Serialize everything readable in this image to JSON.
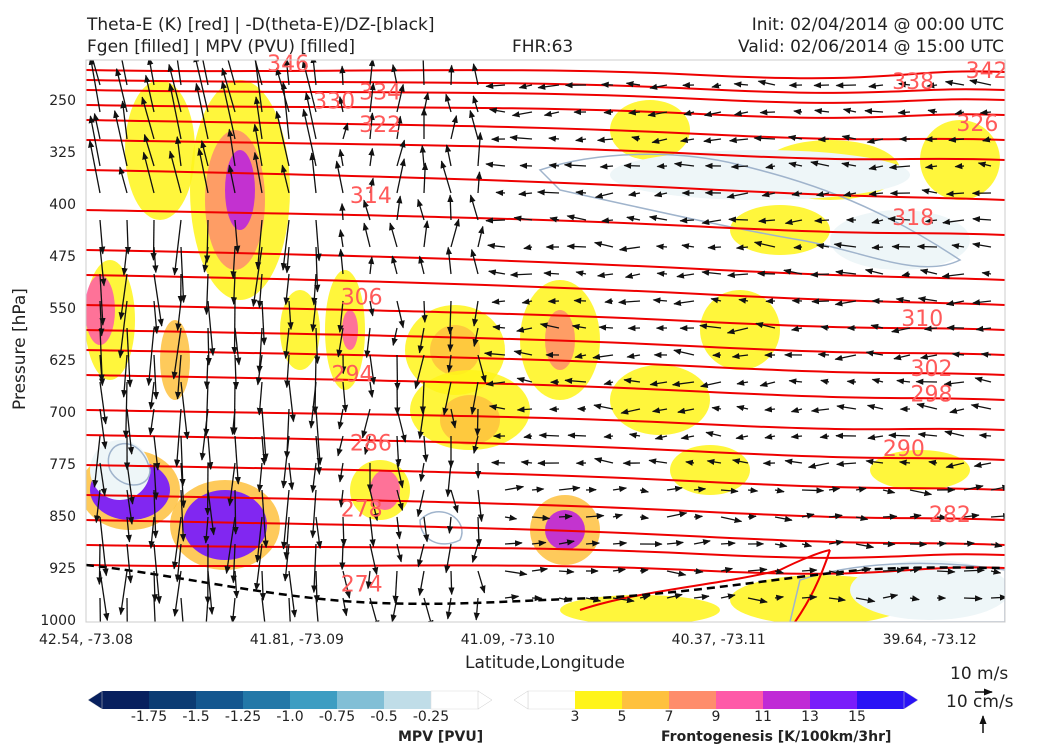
{
  "header": {
    "title_left_1": "Theta-E (K) [red] | -D(theta-E)/DZ-[black]",
    "title_left_2": "Fgen [filled] | MPV (PVU) [filled]",
    "fhr": "FHR:63",
    "init": "Init: 02/04/2014 @ 00:00 UTC",
    "valid": "Valid: 02/06/2014 @ 15:00 UTC"
  },
  "colors": {
    "theta_e": "#ee0000",
    "vectors": "#111111",
    "mpv_contour": "#a0b4cc",
    "dashed": "#000000"
  },
  "chart_data": {
    "type": "cross-section",
    "xlabel": "Latitude,Longitude",
    "ylabel": "Pressure [hPa]",
    "y_ticks": [
      250,
      325,
      400,
      475,
      550,
      625,
      700,
      775,
      850,
      925,
      1000
    ],
    "ylim": [
      1000,
      190
    ],
    "x_ticks": [
      "42.54, -73.08",
      "41.81, -73.09",
      "41.09, -73.10",
      "40.37, -73.11",
      "39.64, -73.12"
    ],
    "theta_e_labels": [
      {
        "label": "346",
        "x": 0.22,
        "p": 196
      },
      {
        "label": "334",
        "x": 0.32,
        "p": 237
      },
      {
        "label": "330",
        "x": 0.27,
        "p": 250
      },
      {
        "label": "338",
        "x": 0.9,
        "p": 222
      },
      {
        "label": "342",
        "x": 0.98,
        "p": 206
      },
      {
        "label": "322",
        "x": 0.32,
        "p": 284
      },
      {
        "label": "326",
        "x": 0.97,
        "p": 282
      },
      {
        "label": "314",
        "x": 0.31,
        "p": 386
      },
      {
        "label": "318",
        "x": 0.9,
        "p": 418
      },
      {
        "label": "306",
        "x": 0.3,
        "p": 532
      },
      {
        "label": "310",
        "x": 0.91,
        "p": 563
      },
      {
        "label": "294",
        "x": 0.29,
        "p": 643
      },
      {
        "label": "302",
        "x": 0.92,
        "p": 635
      },
      {
        "label": "298",
        "x": 0.92,
        "p": 672
      },
      {
        "label": "286",
        "x": 0.31,
        "p": 743
      },
      {
        "label": "290",
        "x": 0.89,
        "p": 751
      },
      {
        "label": "278",
        "x": 0.3,
        "p": 838
      },
      {
        "label": "282",
        "x": 0.94,
        "p": 846
      },
      {
        "label": "274",
        "x": 0.3,
        "p": 946
      }
    ],
    "vector_reference": {
      "top": "10 m/s",
      "bottom": "10 cm/s"
    }
  },
  "colorbars": {
    "mpv": {
      "title": "MPV [PVU]",
      "ticks": [
        "-1.75",
        "-1.5",
        "-1.25",
        "-1.0",
        "-0.75",
        "-0.5",
        "-0.25"
      ],
      "colors": [
        "#08205e",
        "#0b3b73",
        "#14578f",
        "#2378a8",
        "#3d9dc2",
        "#82bfd6",
        "#c0dde8",
        "#ffffff"
      ]
    },
    "fgen": {
      "title": "Frontogenesis [K/100km/3hr]",
      "ticks": [
        "3",
        "5",
        "7",
        "9",
        "11",
        "13",
        "15"
      ],
      "colors": [
        "#ffffff",
        "#fff41a",
        "#fec13e",
        "#fe8d6c",
        "#fe5aa8",
        "#c02bd6",
        "#7a1dfa",
        "#2a13f5"
      ]
    }
  }
}
